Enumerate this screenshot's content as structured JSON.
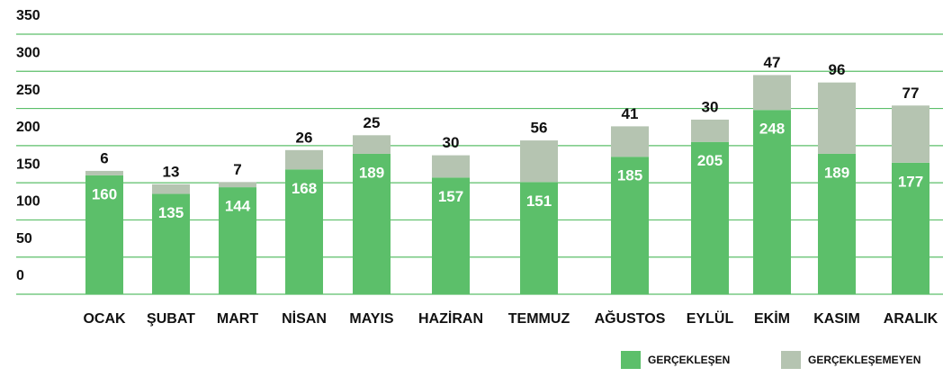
{
  "chart_data": {
    "type": "stacked_bar",
    "categories": [
      "OCAK",
      "ŞUBAT",
      "MART",
      "NİSAN",
      "MAYIS",
      "HAZİRAN",
      "TEMMUZ",
      "AĞUSTOS",
      "EYLÜL",
      "EKİM",
      "KASIM",
      "ARALIK"
    ],
    "series": [
      {
        "name": "GERÇEKLEŞEN",
        "color": "#5cbf6a",
        "values": [
          160,
          135,
          144,
          168,
          189,
          157,
          151,
          185,
          205,
          248,
          189,
          177
        ]
      },
      {
        "name": "GERÇEKLEŞEMEYEN",
        "color": "#b5c4b1",
        "values": [
          6,
          13,
          7,
          26,
          25,
          30,
          56,
          41,
          30,
          47,
          96,
          77
        ]
      }
    ],
    "ylim": [
      0,
      350
    ],
    "yticks": [
      0,
      50,
      100,
      150,
      200,
      250,
      300,
      350
    ],
    "grid": true
  }
}
